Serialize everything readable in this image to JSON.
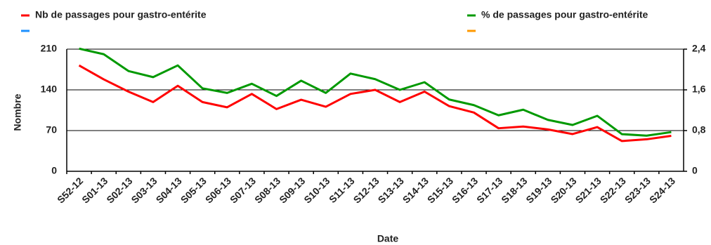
{
  "chart_data": {
    "type": "line",
    "x_label": "Date",
    "y_label": "Nombre",
    "categories": [
      "S52-12",
      "S01-13",
      "S02-13",
      "S03-13",
      "S04-13",
      "S05-13",
      "S06-13",
      "S07-13",
      "S08-13",
      "S09-13",
      "S10-13",
      "S11-13",
      "S12-13",
      "S13-13",
      "S14-13",
      "S15-13",
      "S16-13",
      "S17-13",
      "S18-13",
      "S19-13",
      "S20-13",
      "S21-13",
      "S22-13",
      "S23-13",
      "S24-13"
    ],
    "series": [
      {
        "name": "Nb de passages pour gastro-entérite",
        "color": "#ff0000",
        "axis": "y",
        "values": [
          182,
          158,
          137,
          119,
          147,
          119,
          110,
          133,
          107,
          123,
          111,
          133,
          140,
          119,
          137,
          112,
          101,
          74,
          77,
          72,
          64,
          76,
          52,
          55,
          61
        ]
      },
      {
        "name": "% de passages pour gastro-entérite",
        "color": "#009900",
        "axis": "y2",
        "values": [
          2.41,
          2.3,
          1.97,
          1.85,
          2.08,
          1.63,
          1.54,
          1.72,
          1.48,
          1.78,
          1.54,
          1.92,
          1.81,
          1.6,
          1.75,
          1.41,
          1.3,
          1.1,
          1.21,
          1.01,
          0.91,
          1.09,
          0.73,
          0.7,
          0.77
        ]
      },
      {
        "name": null,
        "color": "#1e90ff",
        "axis": "y",
        "values": [
          null,
          null,
          null,
          null,
          null,
          null,
          null,
          null,
          null,
          null,
          null,
          null,
          null,
          null,
          null,
          null,
          null,
          null,
          null,
          null,
          null,
          null,
          null,
          null,
          null
        ]
      },
      {
        "name": null,
        "color": "#ff9900",
        "axis": "y2",
        "values": [
          null,
          null,
          null,
          null,
          null,
          null,
          null,
          null,
          null,
          null,
          null,
          null,
          null,
          null,
          null,
          null,
          null,
          null,
          null,
          null,
          null,
          null,
          null,
          null,
          null
        ]
      }
    ],
    "ylim": [
      0,
      210
    ],
    "yticks": [
      0,
      70,
      140,
      210
    ],
    "y2lim": [
      0,
      2.4
    ],
    "y2ticks": [
      0,
      {
        "value": 0.8,
        "label": "0,8"
      },
      {
        "value": 1.6,
        "label": "1,6"
      },
      {
        "value": 2.4,
        "label": "2,4"
      }
    ],
    "grid": true
  }
}
